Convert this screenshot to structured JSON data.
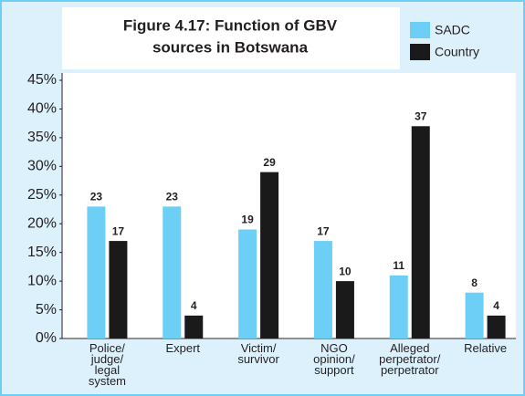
{
  "chart_data": {
    "type": "bar",
    "title": [
      "Figure 4.17: Function of GBV",
      "sources in Botswana"
    ],
    "categories": [
      "Police/ judge/ legal system",
      "Expert",
      "Victim/ survivor",
      "NGO opinion/ support",
      "Alleged perpetrator/ perpetrator",
      "Relative"
    ],
    "series": [
      {
        "name": "SADC",
        "color": "#6dcff6",
        "values": [
          23,
          23,
          19,
          17,
          11,
          8
        ]
      },
      {
        "name": "Country",
        "color": "#1a1a1a",
        "values": [
          17,
          4,
          29,
          10,
          37,
          4
        ]
      }
    ],
    "ylim": [
      0,
      45
    ],
    "yticks": [
      {
        "value": 0,
        "label": "0%"
      },
      {
        "value": 5,
        "label": "5%"
      },
      {
        "value": 10,
        "label": "10%"
      },
      {
        "value": 15,
        "label": "15%"
      },
      {
        "value": 20,
        "label": "20%"
      },
      {
        "value": 25,
        "label": "25%"
      },
      {
        "value": 30,
        "label": "30%"
      },
      {
        "value": 35,
        "label": "35%"
      },
      {
        "value": 40,
        "label": "40%"
      },
      {
        "value": 45,
        "label": "45%"
      }
    ],
    "legend": "top-right"
  }
}
